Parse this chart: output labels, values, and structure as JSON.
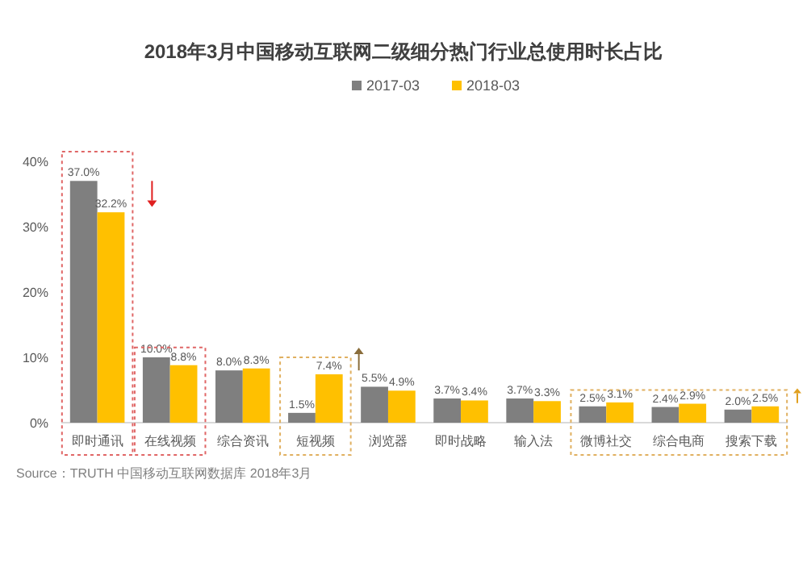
{
  "chart_data": {
    "type": "bar",
    "title": "2018年3月中国移动互联网二级细分热门行业总使用时长占比",
    "categories": [
      "即时通讯",
      "在线视频",
      "综合资讯",
      "短视频",
      "浏览器",
      "即时战略",
      "输入法",
      "微博社交",
      "综合电商",
      "搜索下载"
    ],
    "series": [
      {
        "name": "2017-03",
        "color": "#7f7f7f",
        "values": [
          37.0,
          10.0,
          8.0,
          1.5,
          5.5,
          3.7,
          3.7,
          2.5,
          2.4,
          2.0
        ],
        "value_labels": [
          "37.0%",
          "10.0%",
          "8.0%",
          "1.5%",
          "5.5%",
          "3.7%",
          "3.7%",
          "2.5%",
          "2.4%",
          "2.0%"
        ]
      },
      {
        "name": "2018-03",
        "color": "#ffc000",
        "values": [
          32.2,
          8.8,
          8.3,
          7.4,
          4.9,
          3.4,
          3.3,
          3.1,
          2.9,
          2.5
        ],
        "value_labels": [
          "32.2%",
          "8.8%",
          "8.3%",
          "7.4%",
          "4.9%",
          "3.4%",
          "3.3%",
          "3.1%",
          "2.9%",
          "2.5%"
        ]
      }
    ],
    "ylim": [
      0,
      40
    ],
    "yticks": [
      {
        "value": 0,
        "label": "0%"
      },
      {
        "value": 10,
        "label": "10%"
      },
      {
        "value": 20,
        "label": "20%"
      },
      {
        "value": 30,
        "label": "30%"
      },
      {
        "value": 40,
        "label": "40%"
      }
    ],
    "legend": "top",
    "annotations": [
      "Source：TRUTH 中国移动互联网数据库 2018年3月"
    ]
  }
}
